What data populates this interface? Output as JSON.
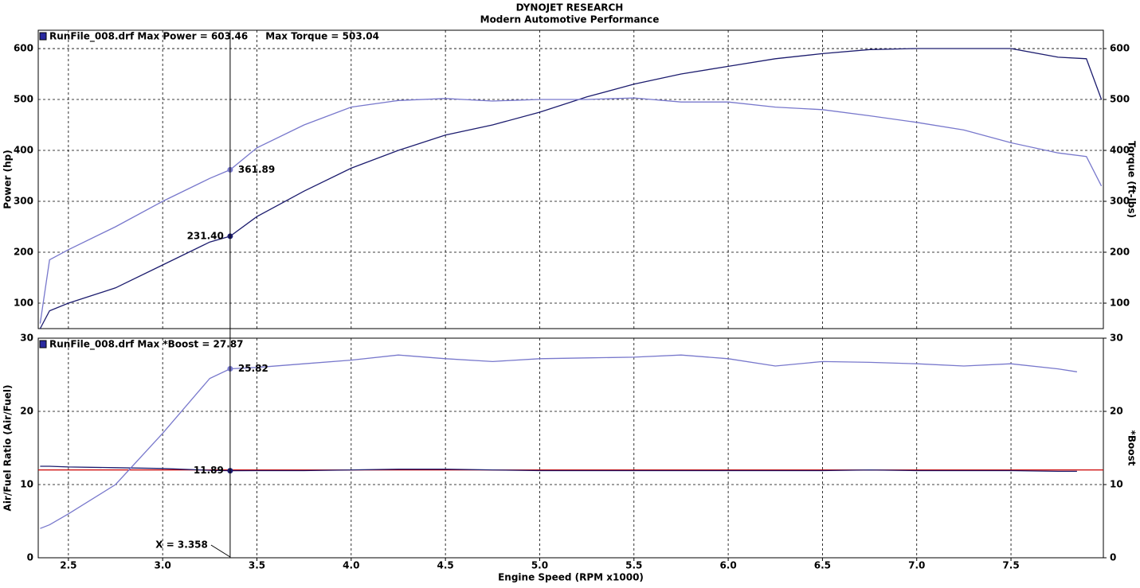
{
  "title": "DYNOJET RESEARCH",
  "subtitle": "Modern Automotive Performance",
  "chart_data": [
    {
      "type": "line",
      "ylabel": "Power (hp)",
      "y2label": "Torque (ft-lbs)",
      "annotations": [
        "RunFile_008.drf Max Power = 603.46",
        "Max Torque = 503.04"
      ],
      "x": [
        2.35,
        2.4,
        2.5,
        2.75,
        3.0,
        3.25,
        3.358,
        3.5,
        3.75,
        4.0,
        4.25,
        4.5,
        4.75,
        5.0,
        5.25,
        5.5,
        5.75,
        6.0,
        6.25,
        6.5,
        6.75,
        7.0,
        7.25,
        7.5,
        7.75,
        7.9,
        7.98
      ],
      "ylim": [
        50,
        636
      ],
      "yticks": [
        100,
        200,
        300,
        400,
        500,
        600
      ],
      "y2lim": [
        50,
        636
      ],
      "y2ticks": [
        100,
        200,
        300,
        400,
        500,
        600
      ],
      "grid": true,
      "series": [
        {
          "name": "Power",
          "color": "#1c1c6e",
          "cursor_value": 231.4,
          "cursor_label": "231.40",
          "values": [
            50,
            85,
            100,
            130,
            175,
            220,
            231.4,
            270,
            320,
            365,
            400,
            430,
            450,
            475,
            505,
            530,
            550,
            565,
            580,
            590,
            598,
            600,
            600,
            600,
            583,
            580,
            500
          ]
        },
        {
          "name": "Torque",
          "color": "#7878cc",
          "axis": "y2",
          "cursor_value": 361.89,
          "values": [
            60,
            185,
            205,
            250,
            300,
            345,
            361.89,
            405,
            450,
            485,
            498,
            502,
            497,
            500,
            500,
            503,
            495,
            495,
            485,
            480,
            468,
            455,
            440,
            415,
            395,
            388,
            330
          ]
        }
      ]
    },
    {
      "type": "line",
      "ylabel": "Air/Fuel Ratio (Air/Fuel)",
      "y2label": "*Boost",
      "xlabel": "Engine Speed (RPM x1000)",
      "annotations": [
        "RunFile_008.drf Max *Boost = 27.87"
      ],
      "cursor": {
        "value": 3.358,
        "label": "X = 3.358"
      },
      "x": [
        2.35,
        2.4,
        2.5,
        2.75,
        3.0,
        3.25,
        3.358,
        3.5,
        3.75,
        4.0,
        4.25,
        4.5,
        4.75,
        5.0,
        5.25,
        5.5,
        5.75,
        6.0,
        6.25,
        6.5,
        6.75,
        7.0,
        7.25,
        7.5,
        7.75,
        7.85,
        7.98
      ],
      "xlim": [
        2.34,
        7.99
      ],
      "xticks": [
        2.5,
        {
          "value": 3,
          "label": "3.0"
        },
        3.5,
        {
          "value": 4,
          "label": "4.0"
        },
        4.5,
        {
          "value": 5,
          "label": "5.0"
        },
        5.5,
        {
          "value": 6,
          "label": "6.0"
        },
        6.5,
        {
          "value": 7,
          "label": "7.0"
        },
        7.5
      ],
      "ylim": [
        0,
        30
      ],
      "yticks": [
        0,
        10,
        20,
        30
      ],
      "y2lim": [
        0,
        30
      ],
      "y2ticks": [
        0,
        10,
        20,
        30
      ],
      "grid": true,
      "target_line": {
        "value": 12,
        "color": "#cc0000"
      },
      "series": [
        {
          "name": "Air/Fuel Ratio",
          "color": "#1c1c6e",
          "cursor_value": 11.89,
          "cursor_label": "11.89",
          "values": [
            12.5,
            12.5,
            12.4,
            12.3,
            12.2,
            11.95,
            11.89,
            11.9,
            11.9,
            12.0,
            12.1,
            12.1,
            12.0,
            11.9,
            11.9,
            11.9,
            11.9,
            11.9,
            11.9,
            11.9,
            12.0,
            11.9,
            11.9,
            11.9,
            11.8,
            11.8,
            null
          ]
        },
        {
          "name": "*Boost",
          "color": "#7878cc",
          "axis": "y2",
          "cursor_value": 25.82,
          "values": [
            4,
            4.5,
            6,
            10,
            17,
            24.5,
            25.82,
            26,
            26.5,
            27,
            27.7,
            27.2,
            26.8,
            27.2,
            27.3,
            27.4,
            27.7,
            27.2,
            26.2,
            26.8,
            26.7,
            26.5,
            26.2,
            26.5,
            25.8,
            25.4,
            null
          ]
        }
      ]
    }
  ]
}
